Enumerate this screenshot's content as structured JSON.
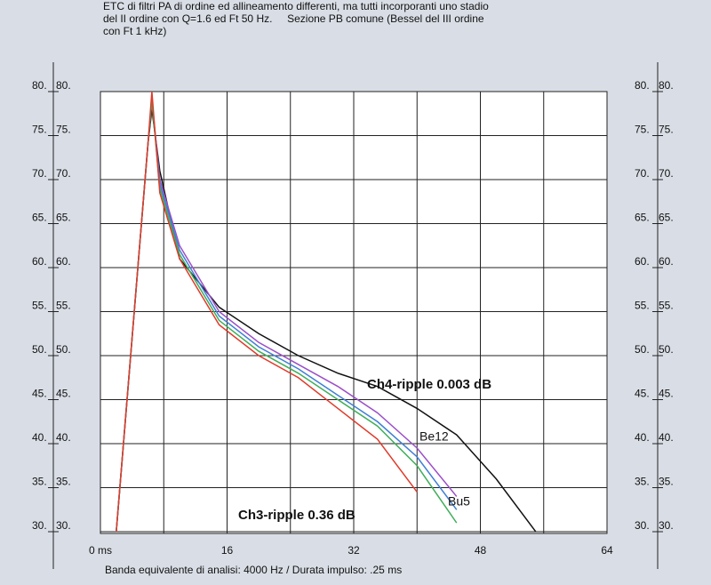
{
  "chart_data": {
    "type": "line",
    "title": "ETC di filtri PA di ordine ed allineamento differenti, ma tutti incorporanti uno stadio",
    "subtitle": "del II ordine con Q=1.6 ed Ft 50 Hz.     Sezione PB comune (Bessel del III ordine",
    "subtitle2": "con Ft 1 kHz)",
    "xlabel": "Banda equivalente di analisi: 4000 Hz / Durata impulso: .25 ms",
    "x": [
      2,
      4,
      6,
      6.5,
      7.5,
      10,
      15,
      20,
      25,
      30,
      35,
      40,
      45,
      50,
      55
    ],
    "series": [
      {
        "name": "Be12",
        "color": "#111111",
        "values": [
          30,
          52,
          74,
          78,
          71,
          61,
          55.5,
          52.5,
          50,
          48,
          46.5,
          44,
          41,
          36,
          30
        ]
      },
      {
        "name": "Ch4-ripple 0.003 dB",
        "color": "#9b4fc9",
        "values": [
          30,
          52,
          74,
          79,
          70,
          62.5,
          55,
          51.5,
          49,
          46.5,
          43.5,
          39.5,
          34,
          null,
          null
        ]
      },
      {
        "color": "#3d7fd6",
        "values": [
          30,
          52,
          74,
          79,
          69.5,
          62,
          54.5,
          51,
          48.5,
          45.5,
          42.5,
          38.5,
          32.5,
          null,
          null
        ]
      },
      {
        "name": "Bu5",
        "color": "#3fae5a",
        "values": [
          30,
          52,
          74,
          79,
          69,
          61.5,
          54,
          50.5,
          48,
          45,
          42,
          37.5,
          31,
          null,
          null
        ]
      },
      {
        "name": "Ch3-ripple 0.36 dB",
        "color": "#e03a2a",
        "values": [
          30,
          52,
          74,
          80,
          68.5,
          61,
          53.5,
          50,
          47.5,
          44,
          40.5,
          34.5,
          null,
          null,
          null
        ]
      }
    ],
    "xlim": [
      0,
      64
    ],
    "ylim": [
      29.8,
      80
    ],
    "xticks": [
      {
        "value": 0,
        "label": "0 ms"
      },
      16,
      32,
      48,
      64
    ],
    "xgrid": [
      8,
      24,
      40,
      56
    ],
    "yticks": [
      {
        "value": 30,
        "label": "30."
      },
      {
        "value": 35,
        "label": "35."
      },
      {
        "value": 40,
        "label": "40."
      },
      {
        "value": 45,
        "label": "45."
      },
      {
        "value": 50,
        "label": "50."
      },
      {
        "value": 55,
        "label": "55."
      },
      {
        "value": 60,
        "label": "60."
      },
      {
        "value": 65,
        "label": "65."
      },
      {
        "value": 70,
        "label": "70."
      },
      {
        "value": 75,
        "label": "75."
      },
      {
        "value": 80,
        "label": "80."
      }
    ],
    "grid": true
  }
}
